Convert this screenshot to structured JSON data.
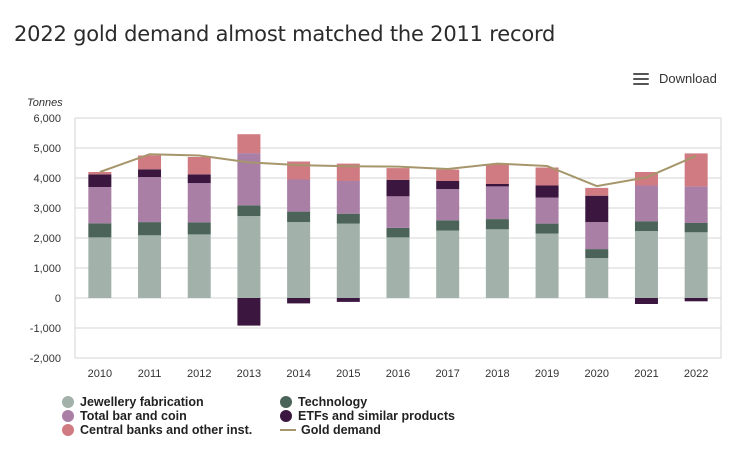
{
  "header": {
    "title": "2022 gold demand almost matched the 2011 record",
    "download_label": "Download",
    "download_icon": "menu-icon"
  },
  "chart_data": {
    "type": "bar",
    "stacked": true,
    "unit_label": "Tonnes",
    "categories": [
      "2010",
      "2011",
      "2012",
      "2013",
      "2014",
      "2015",
      "2016",
      "2017",
      "2018",
      "2019",
      "2020",
      "2021",
      "2022"
    ],
    "ylim": [
      -2000,
      6000
    ],
    "yticks": [
      "-2,000",
      "-1,000",
      "0",
      "1,000",
      "2,000",
      "3,000",
      "4,000",
      "5,000",
      "6,000"
    ],
    "ytick_values": [
      -2000,
      -1000,
      0,
      1000,
      2000,
      3000,
      4000,
      5000,
      6000
    ],
    "grid": true,
    "legend_position": "bottom-left",
    "series": [
      {
        "name": "Jewellery fabrication",
        "color": "#a2b2ab",
        "values": [
          2020,
          2090,
          2120,
          2730,
          2530,
          2480,
          2020,
          2250,
          2290,
          2150,
          1330,
          2230,
          2190
        ]
      },
      {
        "name": "Technology",
        "color": "#4b6358",
        "values": [
          470,
          440,
          400,
          360,
          350,
          330,
          320,
          340,
          340,
          330,
          300,
          330,
          310
        ]
      },
      {
        "name": "Total bar and coin",
        "color": "#a97fa6",
        "values": [
          1210,
          1500,
          1310,
          1740,
          1070,
          1090,
          1050,
          1040,
          1090,
          870,
          900,
          1190,
          1220
        ]
      },
      {
        "name": "ETFs and similar products",
        "color": "#3b1740",
        "values": [
          420,
          260,
          290,
          -920,
          -180,
          -130,
          550,
          270,
          80,
          400,
          880,
          -200,
          -110
        ]
      },
      {
        "name": "Central banks and other inst.",
        "color": "#d07b82",
        "values": [
          80,
          460,
          580,
          630,
          600,
          580,
          390,
          380,
          660,
          600,
          260,
          450,
          1100
        ]
      },
      {
        "name": "Gold demand",
        "type": "line",
        "color": "#a7966c",
        "values": [
          4200,
          4790,
          4750,
          4520,
          4430,
          4390,
          4380,
          4300,
          4480,
          4400,
          3730,
          4020,
          4740
        ]
      }
    ]
  }
}
